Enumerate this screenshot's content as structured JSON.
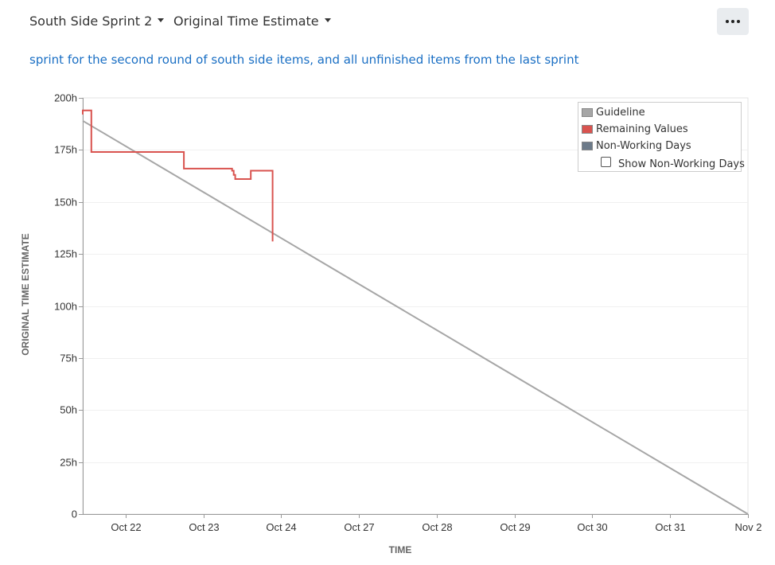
{
  "header": {
    "sprint_label": "South Side Sprint 2",
    "estimate_label": "Original Time Estimate",
    "more_icon": "ellipsis-icon"
  },
  "description": "sprint for the second round of south side items, and all unfinished items from the last sprint",
  "chart_data": {
    "type": "line",
    "xlabel": "TIME",
    "ylabel": "ORIGINAL TIME ESTIMATE",
    "ylim": [
      0,
      200
    ],
    "y_ticks": [
      {
        "value": 0,
        "label": "0"
      },
      {
        "value": 25,
        "label": "25h"
      },
      {
        "value": 50,
        "label": "50h"
      },
      {
        "value": 75,
        "label": "75h"
      },
      {
        "value": 100,
        "label": "100h"
      },
      {
        "value": 125,
        "label": "125h"
      },
      {
        "value": 150,
        "label": "150h"
      },
      {
        "value": 175,
        "label": "175h"
      },
      {
        "value": 200,
        "label": "200h"
      }
    ],
    "xlim": [
      -0.55,
      8
    ],
    "x_ticks": [
      {
        "value": 0,
        "label": "Oct 22"
      },
      {
        "value": 1,
        "label": "Oct 23"
      },
      {
        "value": 2,
        "label": "Oct 24"
      },
      {
        "value": 3,
        "label": "Oct 27"
      },
      {
        "value": 4,
        "label": "Oct 28"
      },
      {
        "value": 5,
        "label": "Oct 29"
      },
      {
        "value": 6,
        "label": "Oct 30"
      },
      {
        "value": 7,
        "label": "Oct 31"
      },
      {
        "value": 8,
        "label": "Nov 2"
      }
    ],
    "grid": true,
    "legend_position": "top-right",
    "series": [
      {
        "name": "Guideline",
        "color": "#a6a6a6",
        "x": [
          -0.55,
          8
        ],
        "y": [
          189,
          0
        ]
      },
      {
        "name": "Remaining Values",
        "color": "#d9534f",
        "x": [
          -0.55,
          -0.55,
          -0.44,
          -0.44,
          0.75,
          0.75,
          1.35,
          1.37,
          1.37,
          1.39,
          1.39,
          1.41,
          1.41,
          1.61,
          1.61,
          1.89,
          1.89,
          1.89
        ],
        "y": [
          192,
          194,
          194,
          174,
          174,
          166,
          166,
          166,
          165,
          165,
          163,
          163,
          161,
          161,
          165,
          165,
          141,
          131
        ]
      }
    ],
    "legend": [
      {
        "label": "Guideline",
        "color": "#a6a6a6"
      },
      {
        "label": "Remaining Values",
        "color": "#d9534f"
      },
      {
        "label": "Non-Working Days",
        "color": "#6c7a89"
      }
    ],
    "show_non_working_days_label": "Show Non-Working Days",
    "show_non_working_days_checked": false
  }
}
